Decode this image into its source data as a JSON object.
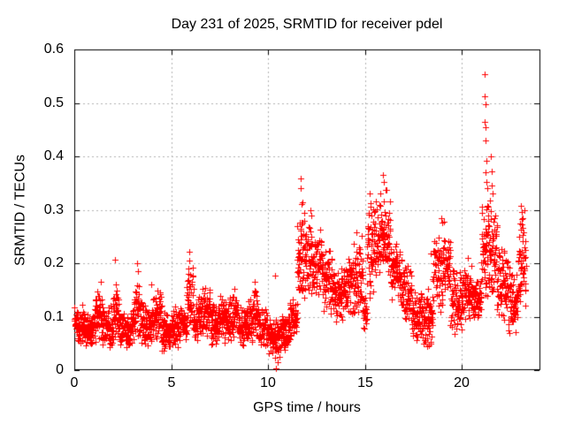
{
  "chart_data": {
    "type": "scatter",
    "title": "Day 231 of 2025, SRMTID for receiver pdel",
    "xlabel": "GPS time / hours",
    "ylabel": "SRMTID / TECUs",
    "xlim": [
      0,
      24
    ],
    "ylim": [
      0,
      0.6
    ],
    "xticks": [
      0,
      5,
      10,
      15,
      20
    ],
    "yticks": [
      0,
      0.1,
      0.2,
      0.3,
      0.4,
      0.5,
      0.6
    ],
    "xtick_labels": [
      "0",
      "5",
      "10",
      "15",
      "20"
    ],
    "ytick_labels": [
      "0",
      "0.1",
      "0.2",
      "0.3",
      "0.4",
      "0.5",
      "0.6"
    ],
    "grid": true,
    "legend": "none",
    "marker": {
      "shape": "plus",
      "color": "#ff0000",
      "size": 7
    },
    "grid_color": "#b3b3b3",
    "border_color": "#000000",
    "background_color": "#ffffff",
    "bands_schema": [
      "x_start_hours",
      "x_end_hours",
      "y_min_tecu",
      "y_max_tecu",
      "point_count"
    ],
    "bands": [
      [
        0.0,
        0.5,
        0.045,
        0.125,
        60
      ],
      [
        0.5,
        1.0,
        0.04,
        0.115,
        60
      ],
      [
        1.0,
        1.5,
        0.045,
        0.15,
        60
      ],
      [
        1.5,
        2.0,
        0.04,
        0.125,
        60
      ],
      [
        2.0,
        2.3,
        0.05,
        0.165,
        38
      ],
      [
        2.3,
        3.0,
        0.04,
        0.115,
        80
      ],
      [
        3.0,
        3.5,
        0.045,
        0.175,
        60
      ],
      [
        3.5,
        4.0,
        0.04,
        0.13,
        60
      ],
      [
        4.0,
        4.5,
        0.045,
        0.155,
        60
      ],
      [
        4.5,
        5.0,
        0.03,
        0.11,
        60
      ],
      [
        5.0,
        5.5,
        0.04,
        0.125,
        60
      ],
      [
        5.5,
        5.8,
        0.05,
        0.13,
        36
      ],
      [
        5.8,
        6.15,
        0.07,
        0.2,
        42
      ],
      [
        6.15,
        6.5,
        0.045,
        0.145,
        42
      ],
      [
        6.5,
        7.0,
        0.05,
        0.16,
        60
      ],
      [
        7.0,
        7.5,
        0.04,
        0.13,
        60
      ],
      [
        7.5,
        8.0,
        0.045,
        0.145,
        60
      ],
      [
        8.0,
        8.5,
        0.05,
        0.16,
        60
      ],
      [
        8.5,
        9.0,
        0.04,
        0.125,
        60
      ],
      [
        9.0,
        9.5,
        0.05,
        0.155,
        60
      ],
      [
        9.5,
        10.0,
        0.04,
        0.125,
        60
      ],
      [
        10.0,
        10.6,
        0.02,
        0.1,
        70
      ],
      [
        10.6,
        11.1,
        0.03,
        0.11,
        60
      ],
      [
        11.1,
        11.5,
        0.05,
        0.145,
        48
      ],
      [
        11.5,
        11.8,
        0.1,
        0.33,
        46
      ],
      [
        11.8,
        12.3,
        0.12,
        0.3,
        60
      ],
      [
        12.3,
        12.8,
        0.13,
        0.27,
        60
      ],
      [
        12.8,
        13.3,
        0.1,
        0.25,
        60
      ],
      [
        13.3,
        13.9,
        0.08,
        0.2,
        72
      ],
      [
        13.9,
        14.4,
        0.09,
        0.22,
        60
      ],
      [
        14.4,
        14.9,
        0.1,
        0.26,
        60
      ],
      [
        14.9,
        15.1,
        0.07,
        0.14,
        24
      ],
      [
        15.1,
        15.5,
        0.12,
        0.33,
        50
      ],
      [
        15.5,
        16.3,
        0.15,
        0.345,
        96
      ],
      [
        16.3,
        16.9,
        0.12,
        0.25,
        72
      ],
      [
        16.9,
        17.4,
        0.08,
        0.2,
        60
      ],
      [
        17.4,
        18.0,
        0.05,
        0.15,
        72
      ],
      [
        18.0,
        18.5,
        0.035,
        0.16,
        60
      ],
      [
        18.5,
        19.0,
        0.1,
        0.26,
        60
      ],
      [
        19.0,
        19.4,
        0.13,
        0.28,
        48
      ],
      [
        19.4,
        20.0,
        0.06,
        0.2,
        72
      ],
      [
        20.0,
        20.5,
        0.08,
        0.21,
        60
      ],
      [
        20.5,
        21.0,
        0.09,
        0.17,
        60
      ],
      [
        21.0,
        21.4,
        0.12,
        0.35,
        56
      ],
      [
        21.4,
        21.8,
        0.13,
        0.33,
        50
      ],
      [
        21.8,
        22.4,
        0.09,
        0.24,
        72
      ],
      [
        22.4,
        22.9,
        0.06,
        0.2,
        60
      ],
      [
        22.9,
        23.3,
        0.1,
        0.31,
        55
      ]
    ],
    "outlier_points": [
      [
        1.38,
        0.165
      ],
      [
        2.12,
        0.206
      ],
      [
        3.22,
        0.2
      ],
      [
        3.28,
        0.185
      ],
      [
        3.95,
        0.16
      ],
      [
        5.92,
        0.222
      ],
      [
        5.95,
        0.205
      ],
      [
        5.9,
        0.19
      ],
      [
        6.05,
        0.165
      ],
      [
        9.3,
        0.165
      ],
      [
        10.35,
        0.177
      ],
      [
        10.42,
        0.004
      ],
      [
        10.48,
        0.015
      ],
      [
        11.66,
        0.359
      ],
      [
        11.7,
        0.341
      ],
      [
        12.2,
        0.3
      ],
      [
        12.24,
        0.29
      ],
      [
        14.55,
        0.258
      ],
      [
        15.22,
        0.33
      ],
      [
        15.28,
        0.312
      ],
      [
        15.92,
        0.365
      ],
      [
        15.97,
        0.352
      ],
      [
        16.05,
        0.338
      ],
      [
        18.4,
        0.218
      ],
      [
        18.95,
        0.285
      ],
      [
        19.05,
        0.277
      ],
      [
        20.3,
        0.21
      ],
      [
        21.18,
        0.553
      ],
      [
        21.19,
        0.512
      ],
      [
        21.2,
        0.497
      ],
      [
        21.17,
        0.465
      ],
      [
        21.22,
        0.455
      ],
      [
        21.21,
        0.43
      ],
      [
        21.24,
        0.392
      ],
      [
        21.2,
        0.37
      ],
      [
        21.26,
        0.352
      ],
      [
        21.3,
        0.34
      ],
      [
        21.48,
        0.4
      ],
      [
        21.52,
        0.372
      ],
      [
        21.55,
        0.345
      ],
      [
        21.58,
        0.33
      ],
      [
        23.02,
        0.308
      ],
      [
        23.08,
        0.296
      ],
      [
        23.12,
        0.285
      ]
    ]
  }
}
